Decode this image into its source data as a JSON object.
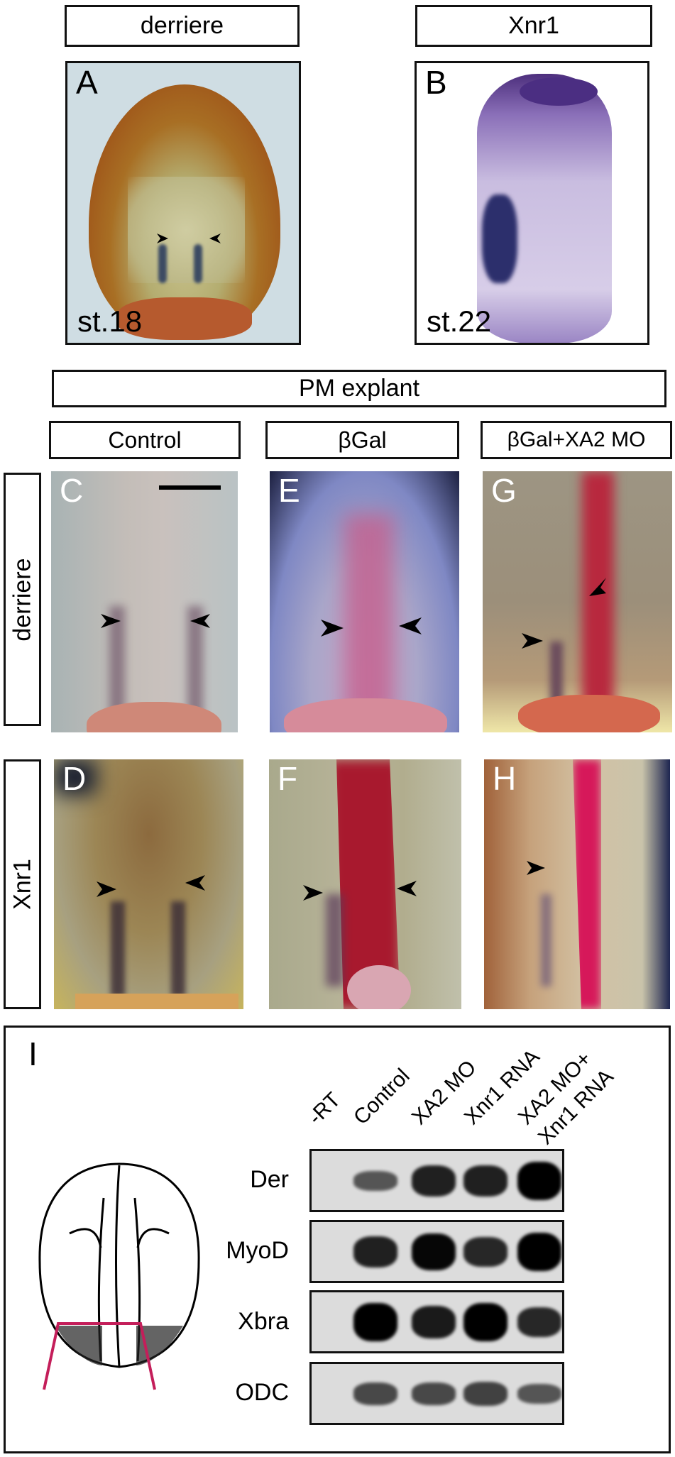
{
  "headers": {
    "derriere": "derriere",
    "xnr1": "Xnr1",
    "pm_explant": "PM explant"
  },
  "columns": [
    "Control",
    "βGal",
    "βGal+XA2 MO"
  ],
  "rows": [
    "derriere",
    "Xnr1"
  ],
  "panels": {
    "A": {
      "letter": "A",
      "stage": "st.18"
    },
    "B": {
      "letter": "B",
      "stage": "st.22"
    },
    "C": {
      "letter": "C"
    },
    "D": {
      "letter": "D"
    },
    "E": {
      "letter": "E"
    },
    "F": {
      "letter": "F"
    },
    "G": {
      "letter": "G"
    },
    "H": {
      "letter": "H"
    }
  },
  "gel": {
    "letter": "I",
    "lanes": [
      "-RT",
      "Control",
      "XA2 MO",
      "Xnr1 RNA",
      "XA2 MO+",
      "Xnr1 RNA"
    ],
    "genes": [
      "Der",
      "MyoD",
      "Xbra",
      "ODC"
    ],
    "band_intensity": {
      "Der": [
        0,
        0.35,
        0.75,
        0.75,
        1.0
      ],
      "MyoD": [
        0,
        0.75,
        0.95,
        0.7,
        1.0
      ],
      "Xbra": [
        0,
        1.0,
        0.8,
        1.0,
        0.7
      ],
      "ODC": [
        0,
        0.45,
        0.45,
        0.5,
        0.35
      ]
    },
    "cut_line_color": "#c41e5a"
  }
}
